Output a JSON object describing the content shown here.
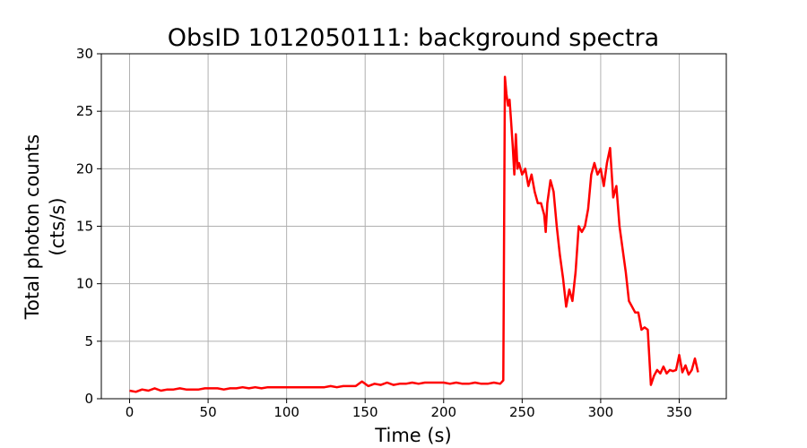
{
  "chart_data": {
    "type": "line",
    "title": "ObsID 1012050111: background spectra",
    "xlabel": "Time (s)",
    "ylabel_lines": [
      "Total photon counts",
      "(cts/s)"
    ],
    "xlim": [
      -18,
      380
    ],
    "ylim": [
      0,
      30
    ],
    "xticks": [
      0,
      50,
      100,
      150,
      200,
      250,
      300,
      350
    ],
    "yticks": [
      0,
      5,
      10,
      15,
      20,
      25,
      30
    ],
    "grid": true,
    "series_color": "#ff0000",
    "series": [
      {
        "x": [
          0,
          4,
          8,
          12,
          16,
          20,
          24,
          28,
          32,
          36,
          40,
          44,
          48,
          52,
          56,
          60,
          64,
          68,
          72,
          76,
          80,
          84,
          88,
          92,
          96,
          100,
          104,
          108,
          112,
          116,
          120,
          124,
          128,
          132,
          136,
          140,
          144,
          148,
          152,
          156,
          160,
          164,
          168,
          172,
          176,
          180,
          184,
          188,
          192,
          196,
          200,
          204,
          208,
          212,
          216,
          220,
          224,
          228,
          232,
          236,
          238,
          239,
          240,
          241,
          242,
          243,
          244,
          245,
          246,
          247,
          248,
          250,
          252,
          254,
          256,
          258,
          260,
          262,
          264,
          265,
          266,
          268,
          270,
          272,
          274,
          276,
          278,
          280,
          282,
          284,
          286,
          288,
          290,
          292,
          294,
          296,
          298,
          300,
          302,
          304,
          306,
          308,
          310,
          312,
          314,
          316,
          318,
          320,
          322,
          324,
          326,
          328,
          330,
          332,
          334,
          336,
          338,
          340,
          342,
          344,
          346,
          348,
          350,
          352,
          354,
          356,
          358,
          360,
          362
        ],
        "y": [
          0.7,
          0.6,
          0.8,
          0.7,
          0.9,
          0.7,
          0.8,
          0.8,
          0.9,
          0.8,
          0.8,
          0.8,
          0.9,
          0.9,
          0.9,
          0.8,
          0.9,
          0.9,
          1.0,
          0.9,
          1.0,
          0.9,
          1.0,
          1.0,
          1.0,
          1.0,
          1.0,
          1.0,
          1.0,
          1.0,
          1.0,
          1.0,
          1.1,
          1.0,
          1.1,
          1.1,
          1.1,
          1.5,
          1.1,
          1.3,
          1.2,
          1.4,
          1.2,
          1.3,
          1.3,
          1.4,
          1.3,
          1.4,
          1.4,
          1.4,
          1.4,
          1.3,
          1.4,
          1.3,
          1.3,
          1.4,
          1.3,
          1.3,
          1.4,
          1.3,
          1.6,
          28.0,
          26.5,
          25.5,
          26.0,
          24.0,
          22.0,
          19.5,
          23.0,
          20.0,
          20.5,
          19.5,
          20.0,
          18.5,
          19.5,
          18.0,
          17.0,
          17.0,
          16.0,
          14.5,
          17.0,
          19.0,
          18.0,
          15.0,
          12.5,
          10.5,
          8.0,
          9.5,
          8.5,
          11.0,
          15.0,
          14.5,
          15.0,
          16.5,
          19.5,
          20.5,
          19.5,
          20.0,
          18.5,
          20.5,
          21.8,
          17.5,
          18.5,
          15.0,
          13.0,
          11.0,
          8.5,
          8.0,
          7.5,
          7.5,
          6.0,
          6.2,
          6.0,
          1.2,
          2.0,
          2.5,
          2.2,
          2.8,
          2.2,
          2.5,
          2.4,
          2.5,
          3.8,
          2.3,
          2.9,
          2.1,
          2.5,
          3.5,
          2.3
        ]
      }
    ]
  }
}
